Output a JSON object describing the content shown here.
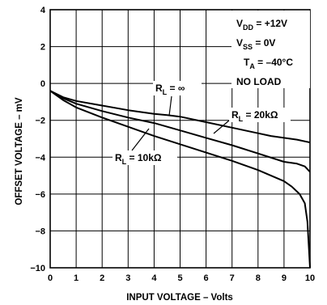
{
  "chart_data": {
    "type": "line",
    "xlabel": "INPUT VOLTAGE – Volts",
    "ylabel": "OFFSET VOLTAGE – mV",
    "xlim": [
      0,
      10
    ],
    "ylim": [
      -10,
      4
    ],
    "xticks": [
      "0",
      "1",
      "2",
      "3",
      "4",
      "5",
      "6",
      "7",
      "8",
      "9",
      "10"
    ],
    "yticks": [
      "4",
      "2",
      "0",
      "−2",
      "−4",
      "−6",
      "−8",
      "−10"
    ],
    "grid": true,
    "conditions": {
      "vdd": "V_DD = +12V",
      "vss": "V_SS = 0V",
      "ta": "T_A = −40°C",
      "load": "NO LOAD"
    },
    "series": [
      {
        "name": "R_L = ∞",
        "x": [
          0,
          0.5,
          1,
          2,
          3,
          4,
          4.5,
          5,
          6,
          7,
          8,
          8.5,
          9,
          9.5,
          10
        ],
        "y": [
          -0.4,
          -0.75,
          -0.95,
          -1.2,
          -1.45,
          -1.65,
          -1.72,
          -1.8,
          -2.1,
          -2.4,
          -2.7,
          -2.85,
          -2.95,
          -3.05,
          -3.2
        ]
      },
      {
        "name": "R_L = 20kΩ",
        "x": [
          0,
          0.5,
          1,
          2,
          3,
          4,
          5,
          6,
          7,
          8,
          9,
          9.5,
          9.8,
          10
        ],
        "y": [
          -0.4,
          -0.8,
          -1.1,
          -1.5,
          -1.85,
          -2.15,
          -2.55,
          -2.95,
          -3.35,
          -3.8,
          -4.25,
          -4.35,
          -4.5,
          -4.8
        ]
      },
      {
        "name": "R_L = 10kΩ",
        "x": [
          0,
          0.5,
          1,
          2,
          3,
          4,
          5,
          6,
          7,
          8,
          8.5,
          9,
          9.3,
          9.6,
          9.8,
          9.9,
          10
        ],
        "y": [
          -0.4,
          -0.9,
          -1.3,
          -1.85,
          -2.35,
          -2.85,
          -3.3,
          -3.75,
          -4.2,
          -4.7,
          -5.0,
          -5.3,
          -5.6,
          -6.0,
          -6.5,
          -7.5,
          -10
        ]
      }
    ],
    "annotations": {
      "inf": {
        "main": "R",
        "sub": "L",
        "rest": " = ∞"
      },
      "k20": {
        "main": "R",
        "sub": "L",
        "rest": " = 20kΩ"
      },
      "k10": {
        "main": "R",
        "sub": "L",
        "rest": " = 10kΩ"
      }
    }
  }
}
